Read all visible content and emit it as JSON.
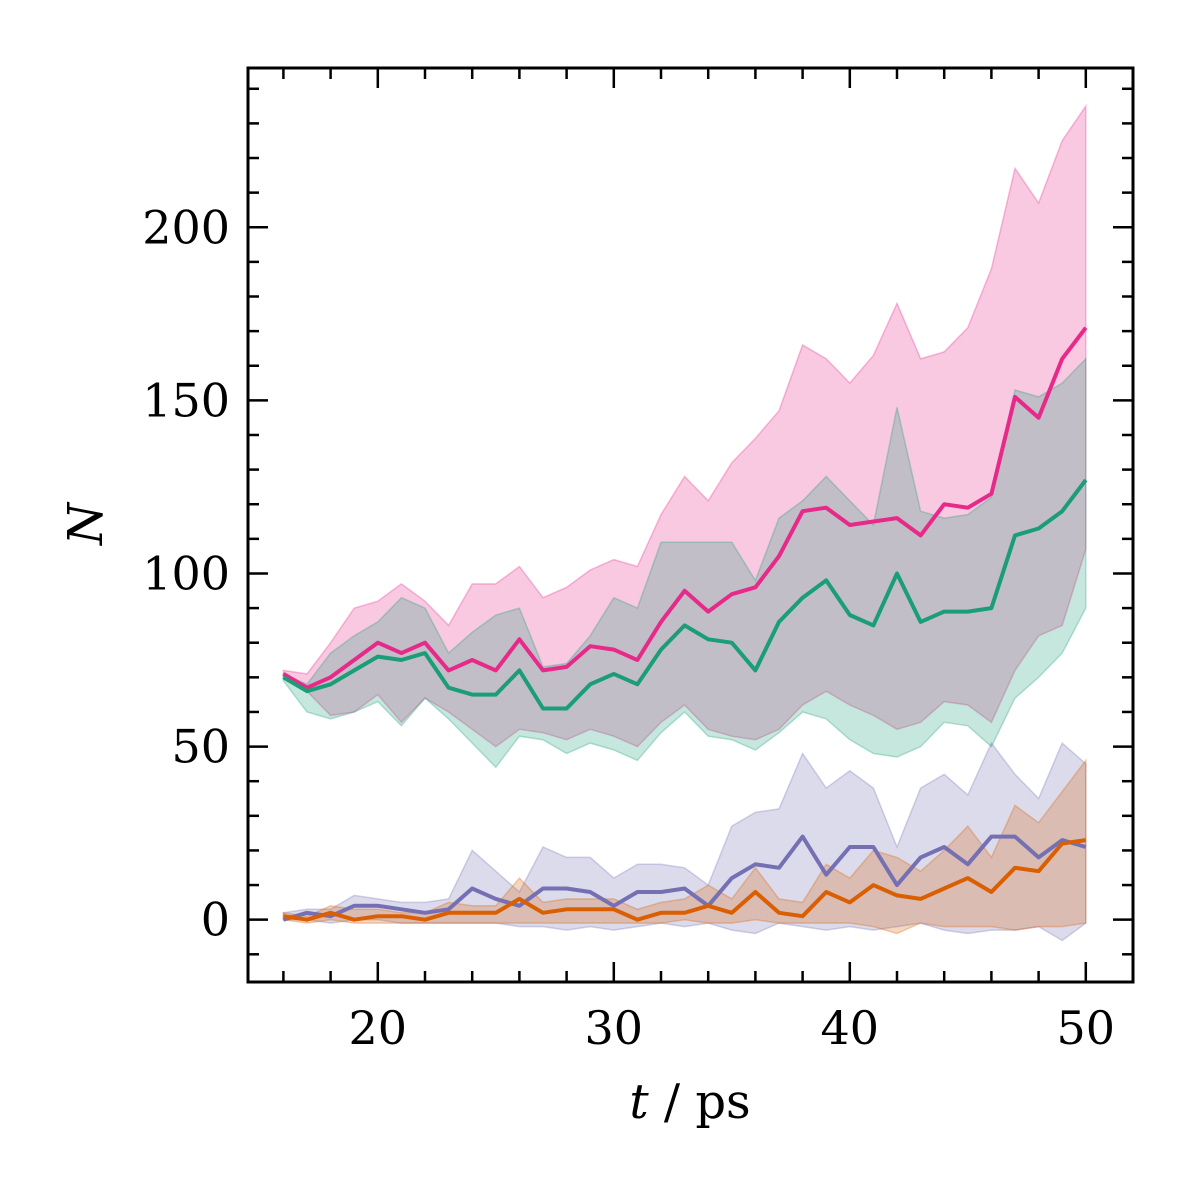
{
  "chart_data": {
    "type": "line",
    "xlabel": "t / ps",
    "ylabel": "N",
    "xlim": [
      14.5,
      52
    ],
    "ylim": [
      -18,
      246
    ],
    "xticks": [
      20,
      30,
      40,
      50
    ],
    "yticks": [
      0,
      50,
      100,
      150,
      200
    ],
    "grid": false,
    "legend": "none",
    "x": [
      16,
      17,
      18,
      19,
      20,
      21,
      22,
      23,
      24,
      25,
      26,
      27,
      28,
      29,
      30,
      31,
      32,
      33,
      34,
      35,
      36,
      37,
      38,
      39,
      40,
      41,
      42,
      43,
      44,
      45,
      46,
      47,
      48,
      49,
      50
    ],
    "series": [
      {
        "color": "#e7298a",
        "values": [
          71,
          67,
          70,
          75,
          80,
          77,
          80,
          72,
          75,
          72,
          81,
          72,
          73,
          79,
          78,
          75,
          86,
          95,
          89,
          94,
          96,
          105,
          118,
          119,
          114,
          115,
          116,
          111,
          120,
          119,
          123,
          151,
          145,
          162,
          171
        ],
        "lower": [
          70,
          66,
          59,
          60,
          65,
          57,
          64,
          60,
          55,
          50,
          55,
          54,
          52,
          55,
          53,
          50,
          57,
          62,
          55,
          53,
          52,
          55,
          62,
          66,
          62,
          59,
          55,
          57,
          63,
          62,
          57,
          72,
          82,
          85,
          107
        ],
        "upper": [
          72,
          71,
          80,
          90,
          92,
          97,
          92,
          85,
          97,
          97,
          102,
          93,
          96,
          101,
          104,
          102,
          117,
          128,
          121,
          132,
          139,
          147,
          166,
          162,
          155,
          163,
          178,
          162,
          164,
          171,
          188,
          217,
          207,
          225,
          235
        ]
      },
      {
        "color": "#1b9e77",
        "values": [
          70,
          66,
          68,
          72,
          76,
          75,
          77,
          67,
          65,
          65,
          72,
          61,
          61,
          68,
          71,
          68,
          78,
          85,
          81,
          80,
          72,
          86,
          93,
          98,
          88,
          85,
          100,
          86,
          89,
          89,
          90,
          111,
          113,
          118,
          127
        ],
        "lower": [
          69,
          60,
          58,
          60,
          63,
          56,
          64,
          58,
          51,
          44,
          53,
          52,
          48,
          51,
          49,
          46,
          54,
          60,
          53,
          52,
          49,
          54,
          60,
          58,
          52,
          48,
          47,
          50,
          57,
          56,
          50,
          64,
          70,
          77,
          90
        ],
        "upper": [
          71,
          68,
          77,
          82,
          86,
          93,
          90,
          77,
          83,
          88,
          90,
          73,
          74,
          82,
          93,
          90,
          109,
          109,
          109,
          109,
          98,
          116,
          121,
          128,
          121,
          114,
          148,
          118,
          116,
          117,
          122,
          153,
          151,
          155,
          162
        ]
      },
      {
        "color": "#7570b3",
        "values": [
          0,
          2,
          1,
          4,
          4,
          3,
          2,
          3,
          9,
          6,
          4,
          9,
          9,
          8,
          4,
          8,
          8,
          9,
          4,
          12,
          16,
          15,
          24,
          13,
          21,
          21,
          10,
          18,
          21,
          16,
          24,
          24,
          18,
          23,
          21
        ],
        "lower": [
          0,
          0,
          -1,
          0,
          0,
          -1,
          -1,
          -1,
          -1,
          -1,
          -2,
          -2,
          -3,
          -2,
          -3,
          -2,
          -1,
          -2,
          -1,
          -3,
          -4,
          -1,
          -2,
          -3,
          -2,
          -3,
          -2,
          -1,
          -3,
          -4,
          -3,
          -3,
          -2,
          -6,
          -1
        ],
        "upper": [
          2,
          3,
          3,
          7,
          6,
          5,
          5,
          6,
          20,
          14,
          8,
          21,
          18,
          18,
          12,
          16,
          16,
          15,
          10,
          27,
          31,
          32,
          48,
          38,
          43,
          38,
          21,
          38,
          42,
          36,
          51,
          42,
          35,
          51,
          45
        ]
      },
      {
        "color": "#d95f02",
        "values": [
          1,
          0,
          2,
          0,
          1,
          1,
          0,
          2,
          2,
          2,
          6,
          2,
          3,
          3,
          3,
          0,
          2,
          2,
          4,
          2,
          8,
          2,
          1,
          8,
          5,
          10,
          7,
          6,
          9,
          12,
          8,
          15,
          14,
          22,
          23
        ],
        "lower": [
          0,
          -1,
          0,
          -1,
          -1,
          -1,
          -1,
          -1,
          -1,
          -1,
          -1,
          -1,
          -1,
          -1,
          -1,
          -1,
          -1,
          0,
          -1,
          -1,
          0,
          -1,
          -1,
          -1,
          -1,
          -2,
          -4,
          -1,
          -2,
          -2,
          -2,
          -3,
          -2,
          -2,
          -1
        ],
        "upper": [
          2,
          1,
          4,
          3,
          3,
          2,
          2,
          5,
          4,
          4,
          12,
          5,
          6,
          6,
          6,
          3,
          5,
          6,
          10,
          6,
          15,
          6,
          5,
          16,
          12,
          20,
          18,
          14,
          20,
          27,
          18,
          33,
          28,
          37,
          46
        ]
      }
    ]
  }
}
